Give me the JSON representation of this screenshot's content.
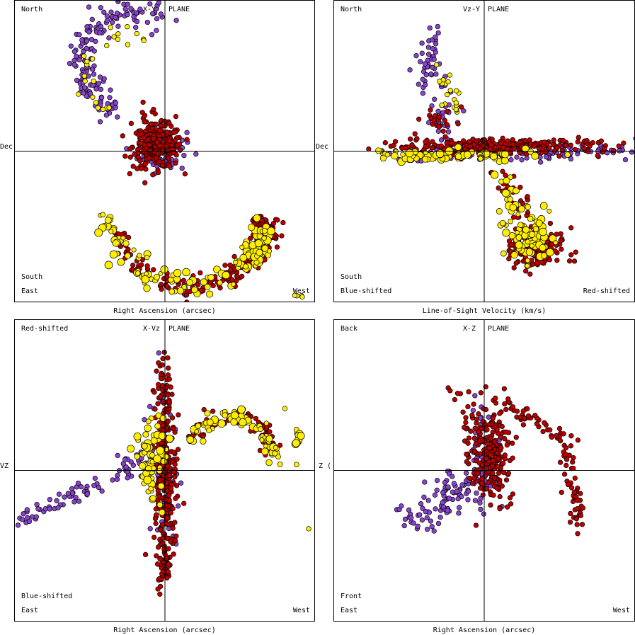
{
  "colors": {
    "purple": "#8844cc",
    "red": "#bb0000",
    "yellow": "#ffee00",
    "outline": "#000000",
    "background": "#ffffff"
  },
  "panels": [
    {
      "id": "xy",
      "title_left": "X-Y",
      "title_right": "PLANE",
      "top_left": "North",
      "bottom_left_upper": "South",
      "bottom_left": "East",
      "bottom_right": "West",
      "top_right": "",
      "x_axis_label": "Right Ascension (arcsec)",
      "y_side_label": "Dec"
    },
    {
      "id": "vzy",
      "title_left": "Vz-Y",
      "title_right": "PLANE",
      "top_left": "North",
      "bottom_left_upper": "South",
      "bottom_left": "Blue-shifted",
      "bottom_right": "Red-shifted",
      "top_right": "",
      "x_axis_label": "Line-of-Sight Velocity (km/s)",
      "y_side_label": "Dec"
    },
    {
      "id": "xvz",
      "title_left": "X-Vz",
      "title_right": "PLANE",
      "top_left": "Red-shifted",
      "bottom_left_upper": "Blue-shifted",
      "bottom_left": "East",
      "bottom_right": "West",
      "top_right": "",
      "x_axis_label": "Right Ascension (arcsec)",
      "y_side_label": "VZ"
    },
    {
      "id": "xz",
      "title_left": "X-Z",
      "title_right": "PLANE",
      "top_left": "Back",
      "bottom_left_upper": "Front",
      "bottom_left": "East",
      "bottom_right": "West",
      "top_right": "",
      "x_axis_label": "Right Ascension (arcsec)",
      "y_side_label": "Z ("
    }
  ],
  "chart_data": [
    {
      "type": "scatter",
      "panel": "X-Y PLANE",
      "xlabel": "Right Ascension (arcsec)",
      "ylabel": "Dec",
      "xlim": [
        -1,
        1
      ],
      "ylim": [
        -1,
        1
      ],
      "series": [
        {
          "color": "#8844cc",
          "components": [
            {
              "kind": "arc",
              "cx": -0.2,
              "cy": 0.6,
              "r": 0.35,
              "a0": 60,
              "a1": 250,
              "n": 160,
              "spread": 0.05
            },
            {
              "kind": "blob",
              "cx": -0.02,
              "cy": 0.0,
              "rx": 0.15,
              "ry": 0.13,
              "n": 60
            }
          ]
        },
        {
          "color": "#bb0000",
          "components": [
            {
              "kind": "blob",
              "cx": -0.05,
              "cy": 0.03,
              "rx": 0.15,
              "ry": 0.13,
              "n": 260
            },
            {
              "kind": "blob",
              "cx": -0.1,
              "cy": 0.18,
              "rx": 0.1,
              "ry": 0.12,
              "n": 20
            },
            {
              "kind": "arc",
              "cx": 0.18,
              "cy": -0.35,
              "r": 0.55,
              "a0": 200,
              "a1": 350,
              "n": 160,
              "spread": 0.04
            },
            {
              "kind": "arc",
              "cx": 0.45,
              "cy": -0.58,
              "r": 0.2,
              "a0": 270,
              "a1": 400,
              "n": 90,
              "spread": 0.03
            }
          ]
        },
        {
          "color": "#ffee00",
          "components": [
            {
              "kind": "arc",
              "cx": -0.22,
              "cy": 0.5,
              "r": 0.3,
              "a0": 70,
              "a1": 230,
              "n": 25,
              "spread": 0.04
            },
            {
              "kind": "arc",
              "cx": 0.15,
              "cy": -0.35,
              "r": 0.55,
              "a0": 185,
              "a1": 345,
              "n": 90,
              "spread": 0.05,
              "big": true
            },
            {
              "kind": "arc",
              "cx": 0.48,
              "cy": -0.6,
              "r": 0.18,
              "a0": 270,
              "a1": 390,
              "n": 50,
              "spread": 0.03,
              "big": true
            },
            {
              "kind": "blob",
              "cx": 0.9,
              "cy": -0.98,
              "rx": 0.04,
              "ry": 0.02,
              "n": 4
            }
          ]
        }
      ]
    },
    {
      "type": "scatter",
      "panel": "Vz-Y PLANE",
      "xlabel": "Line-of-Sight Velocity (km/s)",
      "ylabel": "Dec",
      "xlim": [
        -1,
        1
      ],
      "ylim": [
        -1,
        1
      ],
      "series": [
        {
          "color": "#8844cc",
          "components": [
            {
              "kind": "line",
              "x0": -0.35,
              "y0": 0.83,
              "x1": -0.4,
              "y1": 0.45,
              "n": 40,
              "spread": 0.04
            },
            {
              "kind": "line",
              "x0": -0.3,
              "y0": 0.45,
              "x1": -0.25,
              "y1": 0.1,
              "n": 30,
              "spread": 0.05
            },
            {
              "kind": "blob",
              "cx": 0.3,
              "cy": 0.0,
              "rx": 0.7,
              "ry": 0.05,
              "n": 130
            }
          ]
        },
        {
          "color": "#bb0000",
          "components": [
            {
              "kind": "blob",
              "cx": 0.05,
              "cy": 0.03,
              "rx": 0.7,
              "ry": 0.05,
              "n": 260
            },
            {
              "kind": "blob",
              "cx": -0.3,
              "cy": 0.22,
              "rx": 0.12,
              "ry": 0.08,
              "n": 20
            },
            {
              "kind": "blob",
              "cx": 0.35,
              "cy": -0.65,
              "rx": 0.17,
              "ry": 0.12,
              "n": 140
            },
            {
              "kind": "line",
              "x0": 0.1,
              "y0": -0.15,
              "x1": 0.3,
              "y1": -0.45,
              "n": 30,
              "spread": 0.05
            }
          ]
        },
        {
          "color": "#ffee00",
          "components": [
            {
              "kind": "line",
              "x0": -0.3,
              "y0": 0.55,
              "x1": -0.2,
              "y1": 0.2,
              "n": 20,
              "spread": 0.04
            },
            {
              "kind": "blob",
              "cx": -0.2,
              "cy": -0.03,
              "rx": 0.55,
              "ry": 0.04,
              "n": 80,
              "big": true
            },
            {
              "kind": "blob",
              "cx": 0.3,
              "cy": -0.58,
              "rx": 0.18,
              "ry": 0.13,
              "n": 80,
              "big": true
            },
            {
              "kind": "line",
              "x0": 0.1,
              "y0": -0.12,
              "x1": 0.25,
              "y1": -0.4,
              "n": 20,
              "spread": 0.04,
              "big": true
            }
          ]
        }
      ]
    },
    {
      "type": "scatter",
      "panel": "X-Vz PLANE",
      "xlabel": "Right Ascension (arcsec)",
      "ylabel": "VZ",
      "xlim": [
        -1,
        1
      ],
      "ylim": [
        -1,
        1
      ],
      "series": [
        {
          "color": "#8844cc",
          "components": [
            {
              "kind": "line",
              "x0": -1.0,
              "y0": -0.35,
              "x1": -0.45,
              "y1": -0.1,
              "n": 50,
              "spread": 0.03
            },
            {
              "kind": "line",
              "x0": -0.3,
              "y0": 0.0,
              "x1": -0.1,
              "y1": 0.1,
              "n": 30,
              "spread": 0.04
            },
            {
              "kind": "blob",
              "cx": 0.0,
              "cy": 0.1,
              "rx": 0.1,
              "ry": 0.5,
              "n": 50
            }
          ]
        },
        {
          "color": "#bb0000",
          "components": [
            {
              "kind": "blob",
              "cx": 0.0,
              "cy": -0.05,
              "rx": 0.07,
              "ry": 0.55,
              "n": 280
            },
            {
              "kind": "blob",
              "cx": 0.0,
              "cy": 0.55,
              "rx": 0.04,
              "ry": 0.25,
              "n": 30
            },
            {
              "kind": "arc",
              "cx": 0.45,
              "cy": 0.08,
              "r": 0.28,
              "a0": 10,
              "a1": 150,
              "n": 90,
              "spread": 0.03
            },
            {
              "kind": "blob",
              "cx": 0.0,
              "cy": -0.6,
              "rx": 0.04,
              "ry": 0.15,
              "n": 30
            }
          ]
        },
        {
          "color": "#ffee00",
          "components": [
            {
              "kind": "blob",
              "cx": -0.1,
              "cy": 0.1,
              "rx": 0.1,
              "ry": 0.3,
              "n": 60,
              "big": true
            },
            {
              "kind": "arc",
              "cx": 0.45,
              "cy": 0.08,
              "r": 0.28,
              "a0": -10,
              "a1": 150,
              "n": 70,
              "spread": 0.03,
              "big": true
            },
            {
              "kind": "line",
              "x0": 0.89,
              "y0": 0.05,
              "x1": 0.89,
              "y1": 0.3,
              "n": 10,
              "spread": 0.01,
              "big": true
            },
            {
              "kind": "blob",
              "cx": 0.81,
              "cy": 0.42,
              "rx": 0.01,
              "ry": 0.01,
              "n": 1
            },
            {
              "kind": "blob",
              "cx": 0.96,
              "cy": -0.4,
              "rx": 0.01,
              "ry": 0.01,
              "n": 1
            }
          ]
        }
      ]
    },
    {
      "type": "scatter",
      "panel": "X-Z PLANE",
      "xlabel": "Right Ascension (arcsec)",
      "ylabel": "Z (",
      "xlim": [
        -1,
        1
      ],
      "ylim": [
        -1,
        1
      ],
      "series": [
        {
          "color": "#8844cc",
          "components": [
            {
              "kind": "line",
              "x0": -0.5,
              "y0": -0.35,
              "x1": -0.05,
              "y1": -0.05,
              "n": 100,
              "spread": 0.07
            },
            {
              "kind": "blob",
              "cx": 0.0,
              "cy": 0.1,
              "rx": 0.08,
              "ry": 0.3,
              "n": 50
            }
          ]
        },
        {
          "color": "#bb0000",
          "components": [
            {
              "kind": "blob",
              "cx": 0.05,
              "cy": 0.1,
              "rx": 0.1,
              "ry": 0.3,
              "n": 200
            },
            {
              "kind": "line",
              "x0": -0.15,
              "y0": 0.5,
              "x1": -0.05,
              "y1": 0.0,
              "n": 40,
              "spread": 0.05
            },
            {
              "kind": "line",
              "x0": 0.1,
              "y0": 0.48,
              "x1": 0.55,
              "y1": 0.2,
              "n": 45,
              "spread": 0.03
            },
            {
              "kind": "line",
              "x0": 0.55,
              "y0": 0.2,
              "x1": 0.65,
              "y1": -0.4,
              "n": 50,
              "spread": 0.03
            }
          ]
        }
      ]
    }
  ]
}
